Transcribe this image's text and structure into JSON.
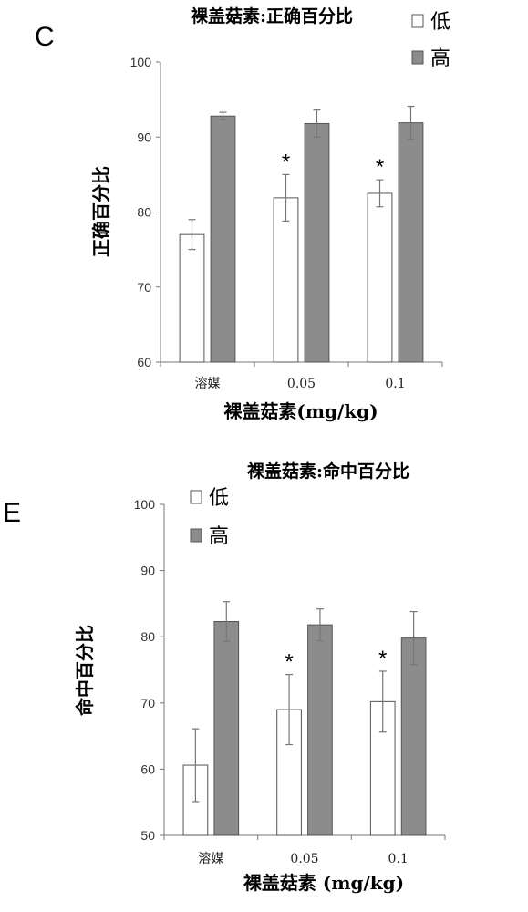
{
  "chart_data": [
    {
      "type": "bar",
      "panel": "C",
      "title": "裸盖菇素:正确百分比",
      "xlabel": "裸盖菇素(mg/kg)",
      "ylabel": "正确百分比",
      "categories": [
        "溶媒",
        "0.05",
        "0.1"
      ],
      "ylim": [
        60,
        100
      ],
      "yticks": [
        "60",
        "70",
        "80",
        "90",
        "100"
      ],
      "grid": false,
      "legend_position": "top-right",
      "series": [
        {
          "name": "低",
          "values": [
            77.0,
            81.9,
            82.5
          ],
          "errors": [
            2.0,
            3.1,
            1.8
          ],
          "color": "#ffffff"
        },
        {
          "name": "高",
          "values": [
            92.8,
            91.8,
            91.9
          ],
          "errors": [
            0.5,
            1.8,
            2.2
          ],
          "color": "#8c8c8c"
        }
      ],
      "annotations": [
        {
          "text": "*",
          "category": "0.05",
          "series": "低"
        },
        {
          "text": "*",
          "category": "0.1",
          "series": "低"
        }
      ]
    },
    {
      "type": "bar",
      "panel": "E",
      "title": "裸盖菇素:命中百分比",
      "xlabel": "裸盖菇素 (mg/kg)",
      "ylabel": "命中百分比",
      "categories": [
        "溶媒",
        "0.05",
        "0.1"
      ],
      "ylim": [
        50,
        100
      ],
      "yticks": [
        "50",
        "60",
        "70",
        "80",
        "90",
        "100"
      ],
      "grid": false,
      "legend_position": "top-left",
      "series": [
        {
          "name": "低",
          "values": [
            60.6,
            69.0,
            70.2
          ],
          "errors": [
            5.5,
            5.3,
            4.6
          ],
          "color": "#ffffff"
        },
        {
          "name": "高",
          "values": [
            82.3,
            81.8,
            79.8
          ],
          "errors": [
            3.0,
            2.4,
            4.0
          ],
          "color": "#8c8c8c"
        }
      ],
      "annotations": [
        {
          "text": "*",
          "category": "0.05",
          "series": "低"
        },
        {
          "text": "*",
          "category": "0.1",
          "series": "低"
        }
      ]
    }
  ]
}
